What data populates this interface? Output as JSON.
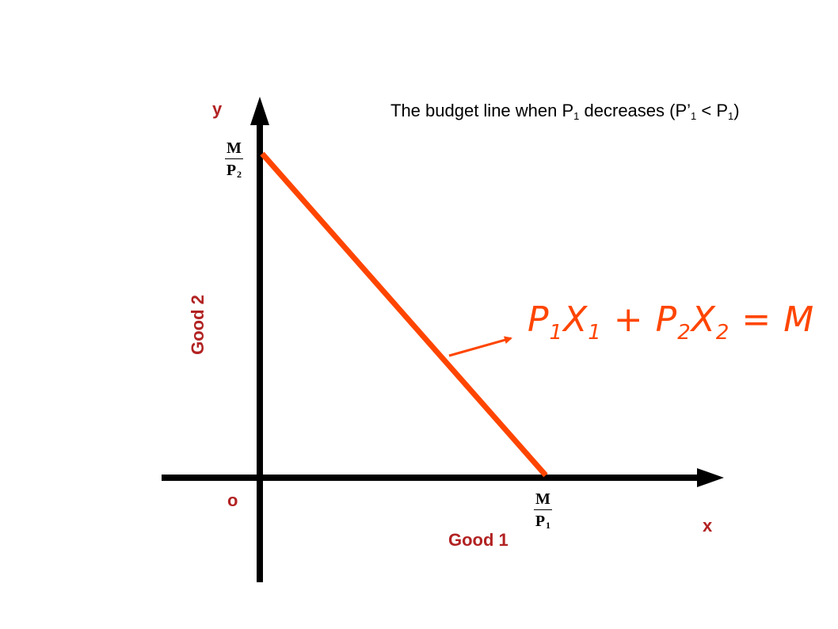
{
  "title": {
    "prefix": "The budget line when P",
    "sub1": "1",
    "middle": " decreases (P’",
    "sub2": "1",
    "lt": " <  P",
    "sub3": "1",
    "suffix": ")"
  },
  "axes": {
    "y_letter": "y",
    "x_letter": "x",
    "origin": "o",
    "y_label": "Good 2",
    "x_label": "Good 1"
  },
  "intercepts": {
    "y": {
      "num": "M",
      "den": "P",
      "den_sub": "2"
    },
    "x": {
      "num": "M",
      "den": "P",
      "den_sub": "1"
    }
  },
  "equation": {
    "p1": "P",
    "p1_sub": "1",
    "x1": "X",
    "x1_sub": "1",
    "plus": " + ",
    "p2": "P",
    "p2_sub": "2",
    "x2": "X",
    "x2_sub": "2",
    "eq": " = ",
    "m": "M"
  },
  "colors": {
    "budget_line": "#ff4500",
    "axes": "#000000",
    "labels": "#b22222"
  }
}
